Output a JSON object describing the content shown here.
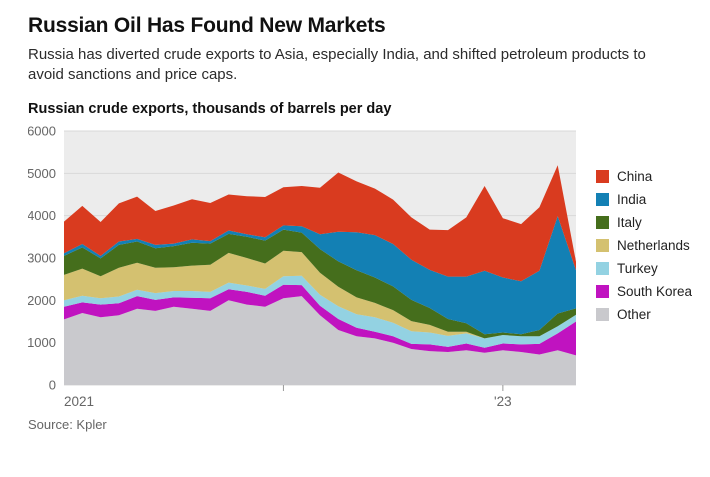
{
  "header": {
    "title": "Russian Oil Has Found New Markets",
    "subtitle": "Russia has diverted crude exports to Asia, especially India, and shifted petroleum products to avoid sanctions and price caps."
  },
  "source": {
    "text": "Source: Kpler"
  },
  "chart_data": {
    "type": "area",
    "stacked": true,
    "title": "Russian crude exports, thousands of barrels per day",
    "ylim": [
      0,
      6000
    ],
    "y_ticks": [
      0,
      1000,
      2000,
      3000,
      4000,
      5000,
      6000
    ],
    "plot_bg": "#ececec",
    "grid_color": "#d9d9d9",
    "axis_text_color": "#666666",
    "months": [
      "2021-01",
      "2021-02",
      "2021-03",
      "2021-04",
      "2021-05",
      "2021-06",
      "2021-07",
      "2021-08",
      "2021-09",
      "2021-10",
      "2021-11",
      "2021-12",
      "2022-01",
      "2022-02",
      "2022-03",
      "2022-04",
      "2022-05",
      "2022-06",
      "2022-07",
      "2022-08",
      "2022-09",
      "2022-10",
      "2022-11",
      "2022-12",
      "2023-01",
      "2023-02",
      "2023-03",
      "2023-04",
      "2023-05"
    ],
    "x_axis": {
      "labels": [
        {
          "index": 0,
          "text": "2021",
          "anchor": "start"
        },
        {
          "index": 24,
          "text": "'23",
          "anchor": "middle"
        }
      ],
      "ticks": [
        12,
        24
      ]
    },
    "series": [
      {
        "name": "Other",
        "color": "#c9c9cd",
        "values": [
          1550,
          1700,
          1600,
          1650,
          1800,
          1750,
          1850,
          1800,
          1750,
          2000,
          1900,
          1850,
          2050,
          2100,
          1650,
          1300,
          1150,
          1100,
          1000,
          850,
          800,
          780,
          820,
          760,
          820,
          780,
          720,
          820,
          700
        ]
      },
      {
        "name": "South Korea",
        "color": "#c013c0",
        "values": [
          300,
          250,
          300,
          280,
          300,
          260,
          220,
          260,
          300,
          260,
          300,
          260,
          320,
          260,
          220,
          260,
          200,
          160,
          150,
          120,
          160,
          120,
          160,
          120,
          160,
          180,
          250,
          400,
          800
        ]
      },
      {
        "name": "Turkey",
        "color": "#93d2e2",
        "values": [
          150,
          160,
          150,
          160,
          150,
          160,
          150,
          160,
          150,
          160,
          150,
          160,
          200,
          220,
          260,
          300,
          320,
          340,
          320,
          300,
          280,
          260,
          240,
          220,
          200,
          190,
          180,
          170,
          160
        ]
      },
      {
        "name": "Netherlands",
        "color": "#d4c170",
        "values": [
          600,
          640,
          520,
          680,
          640,
          600,
          560,
          600,
          640,
          700,
          650,
          600,
          600,
          560,
          520,
          460,
          400,
          340,
          300,
          240,
          180,
          100,
          40,
          0,
          0,
          0,
          0,
          0,
          0
        ]
      },
      {
        "name": "Italy",
        "color": "#456e1c",
        "values": [
          450,
          500,
          420,
          540,
          500,
          460,
          500,
          540,
          500,
          450,
          500,
          540,
          500,
          460,
          560,
          600,
          640,
          600,
          560,
          500,
          400,
          300,
          200,
          100,
          60,
          50,
          150,
          300,
          150
        ]
      },
      {
        "name": "India",
        "color": "#1380b4",
        "values": [
          60,
          80,
          60,
          80,
          60,
          80,
          60,
          80,
          60,
          80,
          60,
          80,
          100,
          150,
          350,
          700,
          900,
          1000,
          1000,
          950,
          900,
          1000,
          1100,
          1500,
          1300,
          1250,
          1400,
          2300,
          900
        ]
      },
      {
        "name": "China",
        "color": "#d93b1f",
        "values": [
          750,
          900,
          800,
          900,
          1000,
          800,
          900,
          950,
          900,
          850,
          900,
          950,
          900,
          950,
          1100,
          1400,
          1200,
          1100,
          1050,
          1000,
          950,
          1100,
          1400,
          2000,
          1400,
          1350,
          1500,
          1200,
          200
        ]
      }
    ],
    "legend_order": [
      "China",
      "India",
      "Italy",
      "Netherlands",
      "Turkey",
      "South Korea",
      "Other"
    ]
  }
}
